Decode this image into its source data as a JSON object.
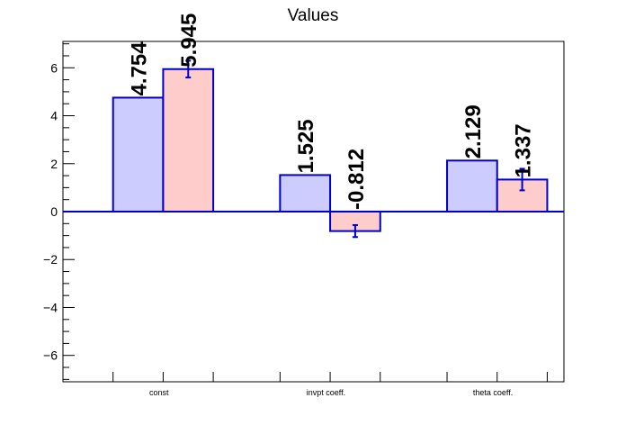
{
  "chart_data": {
    "type": "bar",
    "title": "Values",
    "xlabel": "",
    "ylabel": "",
    "categories": [
      "const",
      "invpt coeff.",
      "theta coeff."
    ],
    "series": [
      {
        "values": [
          4.754,
          1.525,
          2.129
        ],
        "labels": [
          "4.754",
          "1.525",
          "2.129"
        ],
        "color": "#ccccff",
        "errors": [
          0,
          0,
          0
        ]
      },
      {
        "values": [
          5.945,
          -0.812,
          1.337
        ],
        "labels": [
          "5.945",
          "-0.812",
          "1.337"
        ],
        "color": "#ffcccc",
        "errors": [
          0.35,
          0.25,
          0.45
        ]
      }
    ],
    "ylim": [
      -7.1,
      7.1
    ],
    "yticks": [
      -6,
      -4,
      -2,
      0,
      2,
      4,
      6
    ],
    "ytick_labels": [
      "−6",
      "−4",
      "−2",
      "0",
      "2",
      "4",
      "6"
    ],
    "bar_edge_color": "#0000cc",
    "grid": false,
    "legend": "none"
  }
}
